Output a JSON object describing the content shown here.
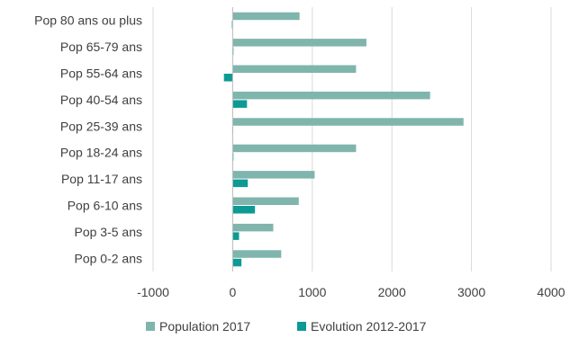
{
  "chart_data": {
    "type": "bar",
    "orientation": "horizontal",
    "categories": [
      "Pop 80 ans ou plus",
      "Pop 65-79 ans",
      "Pop 55-64 ans",
      "Pop 40-54 ans",
      "Pop 25-39 ans",
      "Pop 18-24 ans",
      "Pop 11-17 ans",
      "Pop 6-10 ans",
      "Pop 3-5 ans",
      "Pop 0-2 ans"
    ],
    "series": [
      {
        "name": "Population 2017",
        "color": "#7fb5ad",
        "values": [
          840,
          1680,
          1550,
          2480,
          2900,
          1550,
          1030,
          830,
          510,
          610
        ]
      },
      {
        "name": "Evolution 2012-2017",
        "color": "#0d9a94",
        "values": [
          -10,
          10,
          -110,
          180,
          0,
          10,
          190,
          280,
          80,
          110
        ]
      }
    ],
    "xlim": [
      -1000,
      4000
    ],
    "xticks": [
      -1000,
      0,
      1000,
      2000,
      3000,
      4000
    ],
    "xtick_labels": [
      "-1000",
      "0",
      "1000",
      "2000",
      "3000",
      "4000"
    ],
    "grid": true,
    "legend_position": "bottom",
    "title": "",
    "xlabel": "",
    "ylabel": ""
  }
}
